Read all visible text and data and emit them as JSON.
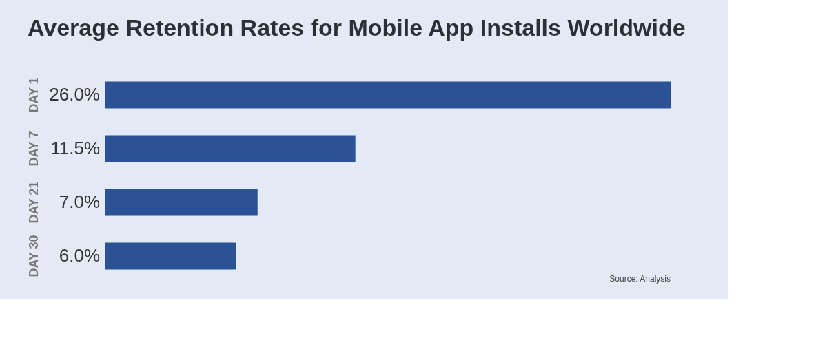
{
  "chart_data": {
    "type": "bar",
    "orientation": "horizontal",
    "title": "Average Retention Rates for Mobile App Installs Worldwide",
    "categories": [
      "DAY 1",
      "DAY 7",
      "DAY 21",
      "DAY 30"
    ],
    "values": [
      26.0,
      11.5,
      7.0,
      6.0
    ],
    "value_labels": [
      "26.0%",
      "11.5%",
      "7.0%",
      "6.0%"
    ],
    "color": "#2a5294",
    "annotations": [
      "Source: Analysis"
    ]
  }
}
